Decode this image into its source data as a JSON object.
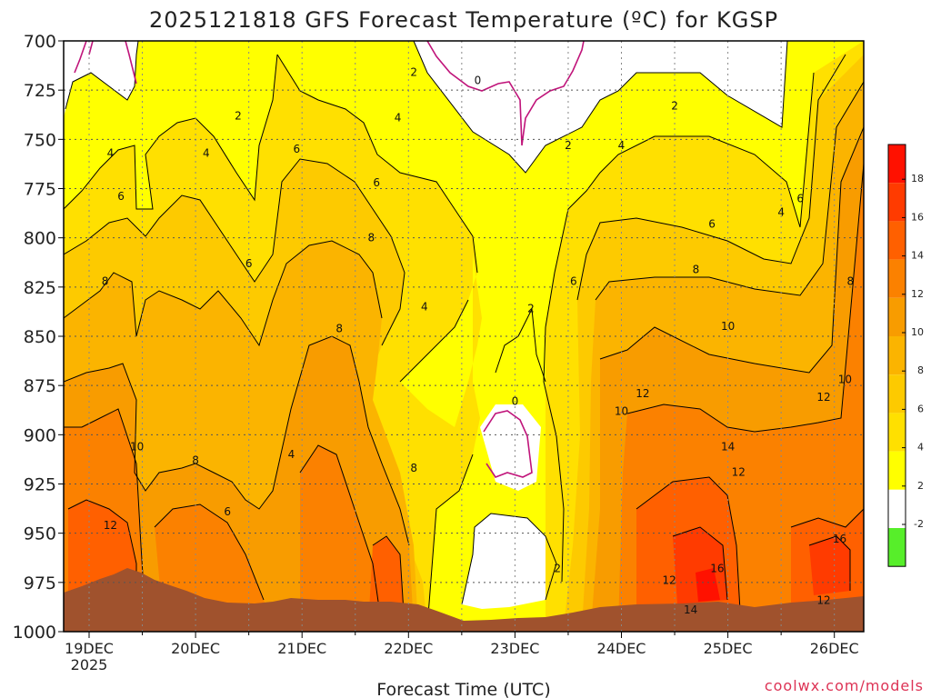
{
  "chart_data": {
    "type": "heatmap",
    "title": "2025121818 GFS Forecast Temperature (ºC) for KGSP",
    "xlabel": "Forecast Time (UTC)",
    "credit": "coolwx.com/models",
    "credit_color": "#dd3355",
    "x_ticks": [
      "19DEC",
      "20DEC",
      "21DEC",
      "22DEC",
      "23DEC",
      "24DEC",
      "25DEC",
      "26DEC"
    ],
    "x_sublabel": "2025",
    "y_ticks": [
      "700",
      "725",
      "750",
      "775",
      "800",
      "825",
      "850",
      "875",
      "900",
      "925",
      "950",
      "975",
      "1000"
    ],
    "ylim": [
      700,
      1000
    ],
    "y_axis_unit": "hPa",
    "grid": true,
    "colorbar": {
      "labels": [
        "18",
        "16",
        "14",
        "12",
        "10",
        "8",
        "6",
        "4",
        "2",
        "-2"
      ],
      "colors": [
        "#ff1100",
        "#ff3b00",
        "#ff6000",
        "#fb8100",
        "#f89c00",
        "#fbb400",
        "#fdca00",
        "#ffe000",
        "#ffff00",
        "#ffffff",
        "#57ee2a"
      ]
    },
    "series": [
      {
        "name": "0",
        "values": [
          [
            0.0,
            1.0
          ],
          [
            3.0,
            1.0
          ],
          [
            4.0,
            1.0
          ],
          [
            5.0,
            1.0
          ],
          [
            6.5,
            1.0
          ],
          [
            7.3,
            1.0
          ]
        ]
      }
    ],
    "approx_temperature_profile": {
      "levels_hPa": [
        700,
        750,
        800,
        850,
        900,
        950,
        985
      ],
      "times_day": [
        0,
        0.5,
        1,
        1.5,
        2,
        2.5,
        3,
        3.5,
        4,
        4.5,
        5,
        5.5,
        6,
        6.5,
        7,
        7.4
      ],
      "values": [
        [
          1,
          0,
          1,
          1,
          3,
          2,
          1,
          0,
          -1,
          1,
          2,
          2,
          1,
          1,
          3,
          5
        ],
        [
          2,
          1,
          3,
          4,
          4,
          4,
          3,
          2,
          1,
          2,
          4,
          4,
          3,
          3,
          5,
          7
        ],
        [
          5,
          3,
          5,
          6,
          7,
          6,
          5,
          4,
          2,
          3,
          6,
          7,
          6,
          5,
          7,
          9
        ],
        [
          9,
          3,
          7,
          8,
          9,
          7,
          7,
          6,
          2,
          5,
          9,
          10,
          9,
          8,
          9,
          11
        ],
        [
          11,
          5,
          8,
          9,
          9,
          8,
          8,
          7,
          0,
          6,
          11,
          12,
          13,
          12,
          11,
          13
        ],
        [
          13,
          7,
          8,
          8,
          10,
          8,
          9,
          9,
          1,
          4,
          11,
          14,
          15,
          12,
          13,
          16
        ],
        [
          13,
          8,
          7,
          8,
          10,
          8,
          10,
          9,
          2,
          3,
          8,
          14,
          17,
          13,
          13,
          16
        ]
      ]
    },
    "contour_labels": [
      {
        "text": "0",
        "day": 3.65,
        "p": 720
      },
      {
        "text": "0",
        "day": 4.0,
        "p": 883
      },
      {
        "text": "2",
        "day": 1.4,
        "p": 738
      },
      {
        "text": "2",
        "day": 3.05,
        "p": 716
      },
      {
        "text": "2",
        "day": 4.5,
        "p": 753
      },
      {
        "text": "2",
        "day": 5.5,
        "p": 733
      },
      {
        "text": "2",
        "day": 4.15,
        "p": 836
      },
      {
        "text": "2",
        "day": 4.4,
        "p": 968
      },
      {
        "text": "4",
        "day": 0.2,
        "p": 757
      },
      {
        "text": "4",
        "day": 1.1,
        "p": 757
      },
      {
        "text": "4",
        "day": 2.9,
        "p": 739
      },
      {
        "text": "4",
        "day": 5.0,
        "p": 753
      },
      {
        "text": "4",
        "day": 3.15,
        "p": 835
      },
      {
        "text": "4",
        "day": 1.9,
        "p": 910
      },
      {
        "text": "4",
        "day": 6.5,
        "p": 787
      },
      {
        "text": "6",
        "day": 0.3,
        "p": 779
      },
      {
        "text": "6",
        "day": 1.95,
        "p": 755
      },
      {
        "text": "6",
        "day": 2.7,
        "p": 772
      },
      {
        "text": "6",
        "day": 1.5,
        "p": 813
      },
      {
        "text": "6",
        "day": 4.55,
        "p": 822
      },
      {
        "text": "6",
        "day": 5.85,
        "p": 793
      },
      {
        "text": "6",
        "day": 6.68,
        "p": 780
      },
      {
        "text": "6",
        "day": 1.3,
        "p": 939
      },
      {
        "text": "8",
        "day": 0.15,
        "p": 822
      },
      {
        "text": "8",
        "day": 2.65,
        "p": 800
      },
      {
        "text": "8",
        "day": 2.35,
        "p": 846
      },
      {
        "text": "8",
        "day": 1.0,
        "p": 913
      },
      {
        "text": "8",
        "day": 3.05,
        "p": 917
      },
      {
        "text": "8",
        "day": 5.7,
        "p": 816
      },
      {
        "text": "8",
        "day": 7.15,
        "p": 822
      },
      {
        "text": "10",
        "day": 0.45,
        "p": 906
      },
      {
        "text": "10",
        "day": 6.0,
        "p": 845
      },
      {
        "text": "10",
        "day": 5.0,
        "p": 888
      },
      {
        "text": "10",
        "day": 7.1,
        "p": 872
      },
      {
        "text": "12",
        "day": 0.2,
        "p": 946
      },
      {
        "text": "12",
        "day": 5.2,
        "p": 879
      },
      {
        "text": "12",
        "day": 6.1,
        "p": 919
      },
      {
        "text": "12",
        "day": 6.9,
        "p": 881
      },
      {
        "text": "12",
        "day": 5.45,
        "p": 974
      },
      {
        "text": "12",
        "day": 6.9,
        "p": 984
      },
      {
        "text": "14",
        "day": 6.0,
        "p": 906
      },
      {
        "text": "14",
        "day": 5.65,
        "p": 989
      },
      {
        "text": "16",
        "day": 5.9,
        "p": 968
      },
      {
        "text": "16",
        "day": 7.05,
        "p": 953
      }
    ]
  }
}
